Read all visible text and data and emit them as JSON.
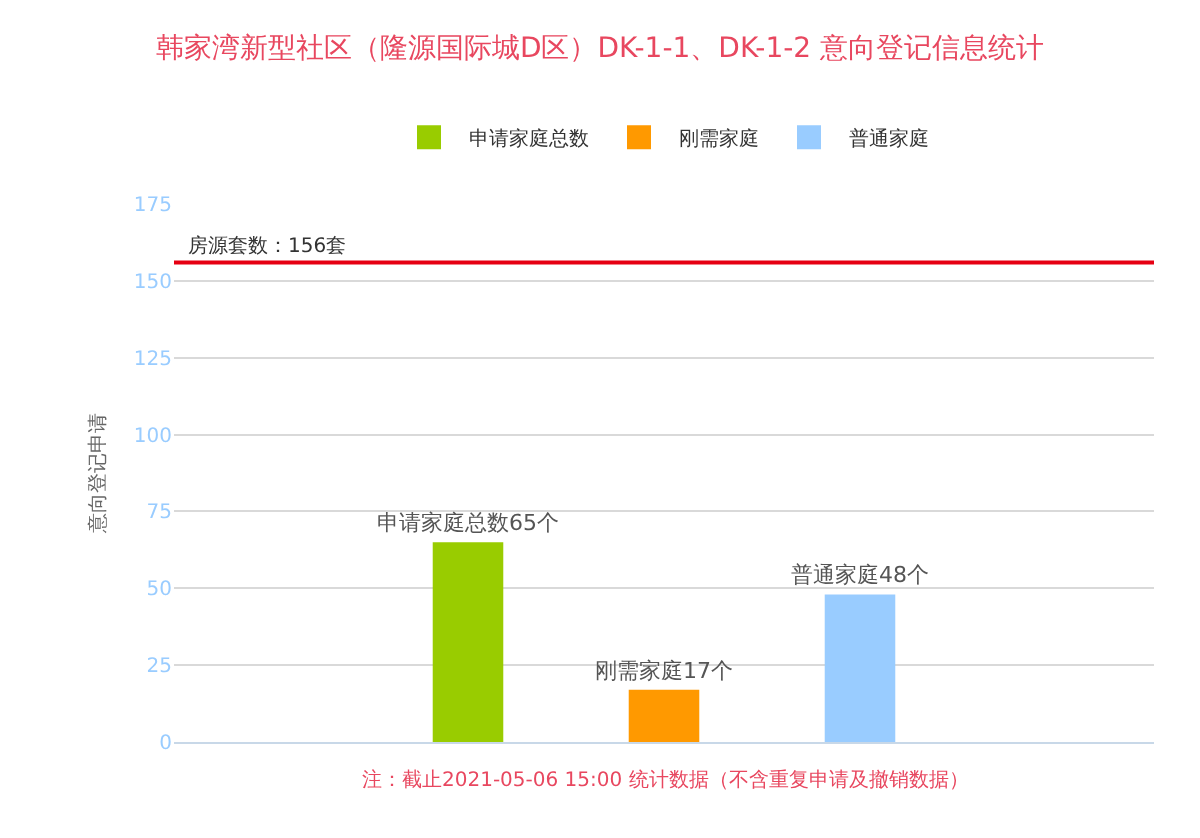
{
  "chart_data": {
    "type": "bar",
    "title": "韩家湾新型社区（隆源国际城D区）DK-1-1、DK-1-2 意向登记信息统计",
    "ylabel": "意向登记申请",
    "categories": [
      null,
      null,
      null,
      null,
      null
    ],
    "series": [
      {
        "name": "申请家庭总数",
        "color": "#99cc00",
        "values": [
          null,
          65,
          null,
          null,
          null
        ],
        "value_labels": [
          null,
          "申请家庭总数65个",
          null,
          null,
          null
        ]
      },
      {
        "name": "刚需家庭",
        "color": "#ff9900",
        "values": [
          null,
          null,
          17,
          null,
          null
        ],
        "value_labels": [
          null,
          null,
          "刚需家庭17个",
          null,
          null
        ]
      },
      {
        "name": "普通家庭",
        "color": "#99ccff",
        "values": [
          null,
          null,
          null,
          48,
          null
        ],
        "value_labels": [
          null,
          null,
          null,
          "普通家庭48个",
          null
        ]
      }
    ],
    "ylim": [
      0,
      175
    ],
    "yticks": [
      0,
      25,
      50,
      75,
      100,
      125,
      150,
      175
    ],
    "grid": "y",
    "legend": "top",
    "ref_lines": [
      {
        "axis": "y",
        "value": 156,
        "label": "房源套数：156套",
        "color": "#e60012"
      }
    ],
    "annotations": [
      "注：截止2021-05-06 15:00 统计数据（不含重复申请及撤销数据）"
    ]
  }
}
